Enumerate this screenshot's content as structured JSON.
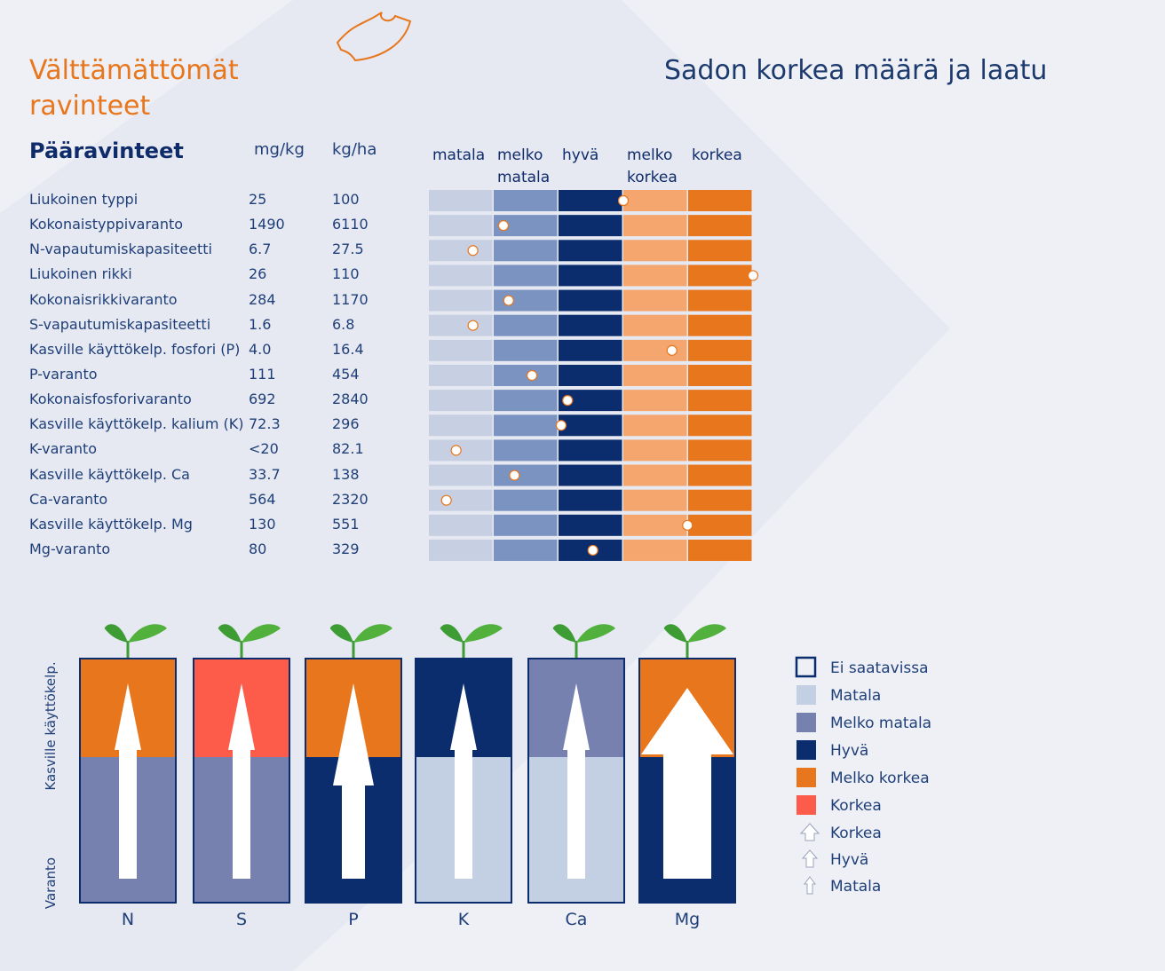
{
  "header": {
    "title": "Välttämättömät ravinteet",
    "subtitle": "Sadon korkea määrä ja laatu"
  },
  "table": {
    "title": "Pääravinteet",
    "columns": [
      "mg/kg",
      "kg/ha"
    ],
    "scale": [
      "matala",
      "melko matala",
      "hyvä",
      "melko korkea",
      "korkea"
    ],
    "scale_colors": [
      "#c6d0e2",
      "#7b93c0",
      "#0b2d6e",
      "#f4a66e",
      "#e8761c"
    ],
    "rows": [
      {
        "name": "Liukoinen typpi",
        "mg_kg": "25",
        "kg_ha": "100",
        "level": 3.0
      },
      {
        "name": "Kokonaistyppivaranto",
        "mg_kg": "1490",
        "kg_ha": "6110",
        "level": 1.15
      },
      {
        "name": "N-vapautumiskapasiteetti",
        "mg_kg": "6.7",
        "kg_ha": "27.5",
        "level": 0.68
      },
      {
        "name": "Liukoinen rikki",
        "mg_kg": "26",
        "kg_ha": "110",
        "level": 5.0
      },
      {
        "name": "Kokonaisrikkivaranto",
        "mg_kg": "284",
        "kg_ha": "1170",
        "level": 1.23
      },
      {
        "name": "S-vapautumiskapasiteetti",
        "mg_kg": "1.6",
        "kg_ha": "6.8",
        "level": 0.68
      },
      {
        "name": "Kasville käyttökelp. fosfori (P)",
        "mg_kg": "4.0",
        "kg_ha": "16.4",
        "level": 3.75
      },
      {
        "name": "P-varanto",
        "mg_kg": "111",
        "kg_ha": "454",
        "level": 1.59
      },
      {
        "name": "Kokonaisfosforivaranto",
        "mg_kg": "692",
        "kg_ha": "2840",
        "level": 2.14
      },
      {
        "name": "Kasville käyttökelp. kalium (K)",
        "mg_kg": "72.3",
        "kg_ha": "296",
        "level": 2.04
      },
      {
        "name": "K-varanto",
        "mg_kg": "<20",
        "kg_ha": "82.1",
        "level": 0.42
      },
      {
        "name": "Kasville käyttökelp. Ca",
        "mg_kg": "33.7",
        "kg_ha": "138",
        "level": 1.32
      },
      {
        "name": "Ca-varanto",
        "mg_kg": "564",
        "kg_ha": "2320",
        "level": 0.27
      },
      {
        "name": "Kasville käyttökelp. Mg",
        "mg_kg": "130",
        "kg_ha": "551",
        "level": 3.99
      },
      {
        "name": "Mg-varanto",
        "mg_kg": "80",
        "kg_ha": "329",
        "level": 2.53
      }
    ]
  },
  "columns": {
    "y_labels": [
      "Varanto",
      "Kasville käyttökelp."
    ],
    "items": [
      {
        "label": "N",
        "reserve_color": "#7781b0",
        "available_color": "#e8761c",
        "arrow": "small"
      },
      {
        "label": "S",
        "reserve_color": "#7781b0",
        "available_color": "#fd5c4a",
        "arrow": "small"
      },
      {
        "label": "P",
        "reserve_color": "#0b2d6e",
        "available_color": "#e8761c",
        "arrow": "medium"
      },
      {
        "label": "K",
        "reserve_color": "#c3cfe2",
        "available_color": "#0b2d6e",
        "arrow": "small"
      },
      {
        "label": "Ca",
        "reserve_color": "#c3cfe2",
        "available_color": "#7781b0",
        "arrow": "small"
      },
      {
        "label": "Mg",
        "reserve_color": "#0b2d6e",
        "available_color": "#e8761c",
        "arrow": "large"
      }
    ]
  },
  "legend": {
    "colors": [
      {
        "label": "Ei saatavissa",
        "color": "none"
      },
      {
        "label": "Matala",
        "color": "#c3cfe2"
      },
      {
        "label": "Melko matala",
        "color": "#7781b0"
      },
      {
        "label": "Hyvä",
        "color": "#0b2d6e"
      },
      {
        "label": "Melko korkea",
        "color": "#e8761c"
      },
      {
        "label": "Korkea",
        "color": "#fd5c4a"
      }
    ],
    "arrows": [
      {
        "label": "Korkea",
        "size": "large"
      },
      {
        "label": "Hyvä",
        "size": "medium"
      },
      {
        "label": "Matala",
        "size": "small"
      }
    ]
  }
}
